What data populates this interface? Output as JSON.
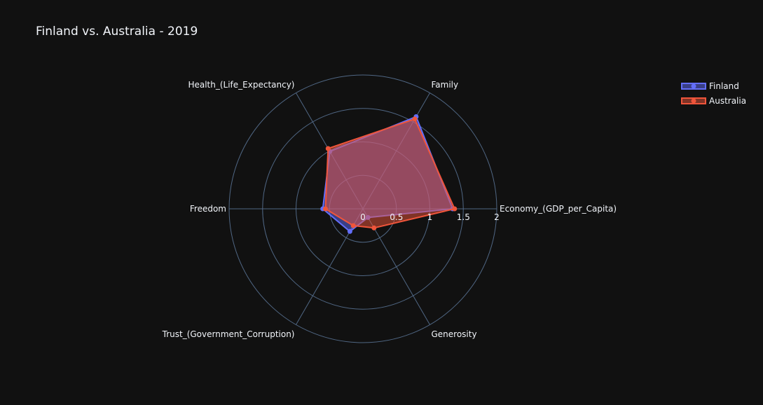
{
  "chart_data": {
    "type": "radar",
    "title": "Finland vs. Australia - 2019",
    "axes": [
      "Economy_(GDP_per_Capita)",
      "Family",
      "Health_(Life_Expectancy)",
      "Freedom",
      "Trust_(Government_Corruption)",
      "Generosity"
    ],
    "radial_range": [
      0,
      2
    ],
    "radial_ticks": [
      0,
      0.5,
      1,
      1.5,
      2
    ],
    "radial_tick_labels": [
      "0",
      "0.5",
      "1",
      "1.5",
      "2"
    ],
    "grid": true,
    "legend_position": "top-right",
    "series": [
      {
        "name": "Finland",
        "color": "#636efa",
        "values": [
          1.34,
          1.59,
          0.99,
          0.6,
          0.39,
          0.15
        ]
      },
      {
        "name": "Australia",
        "color": "#ef553b",
        "values": [
          1.37,
          1.55,
          1.04,
          0.56,
          0.29,
          0.33
        ]
      }
    ]
  }
}
